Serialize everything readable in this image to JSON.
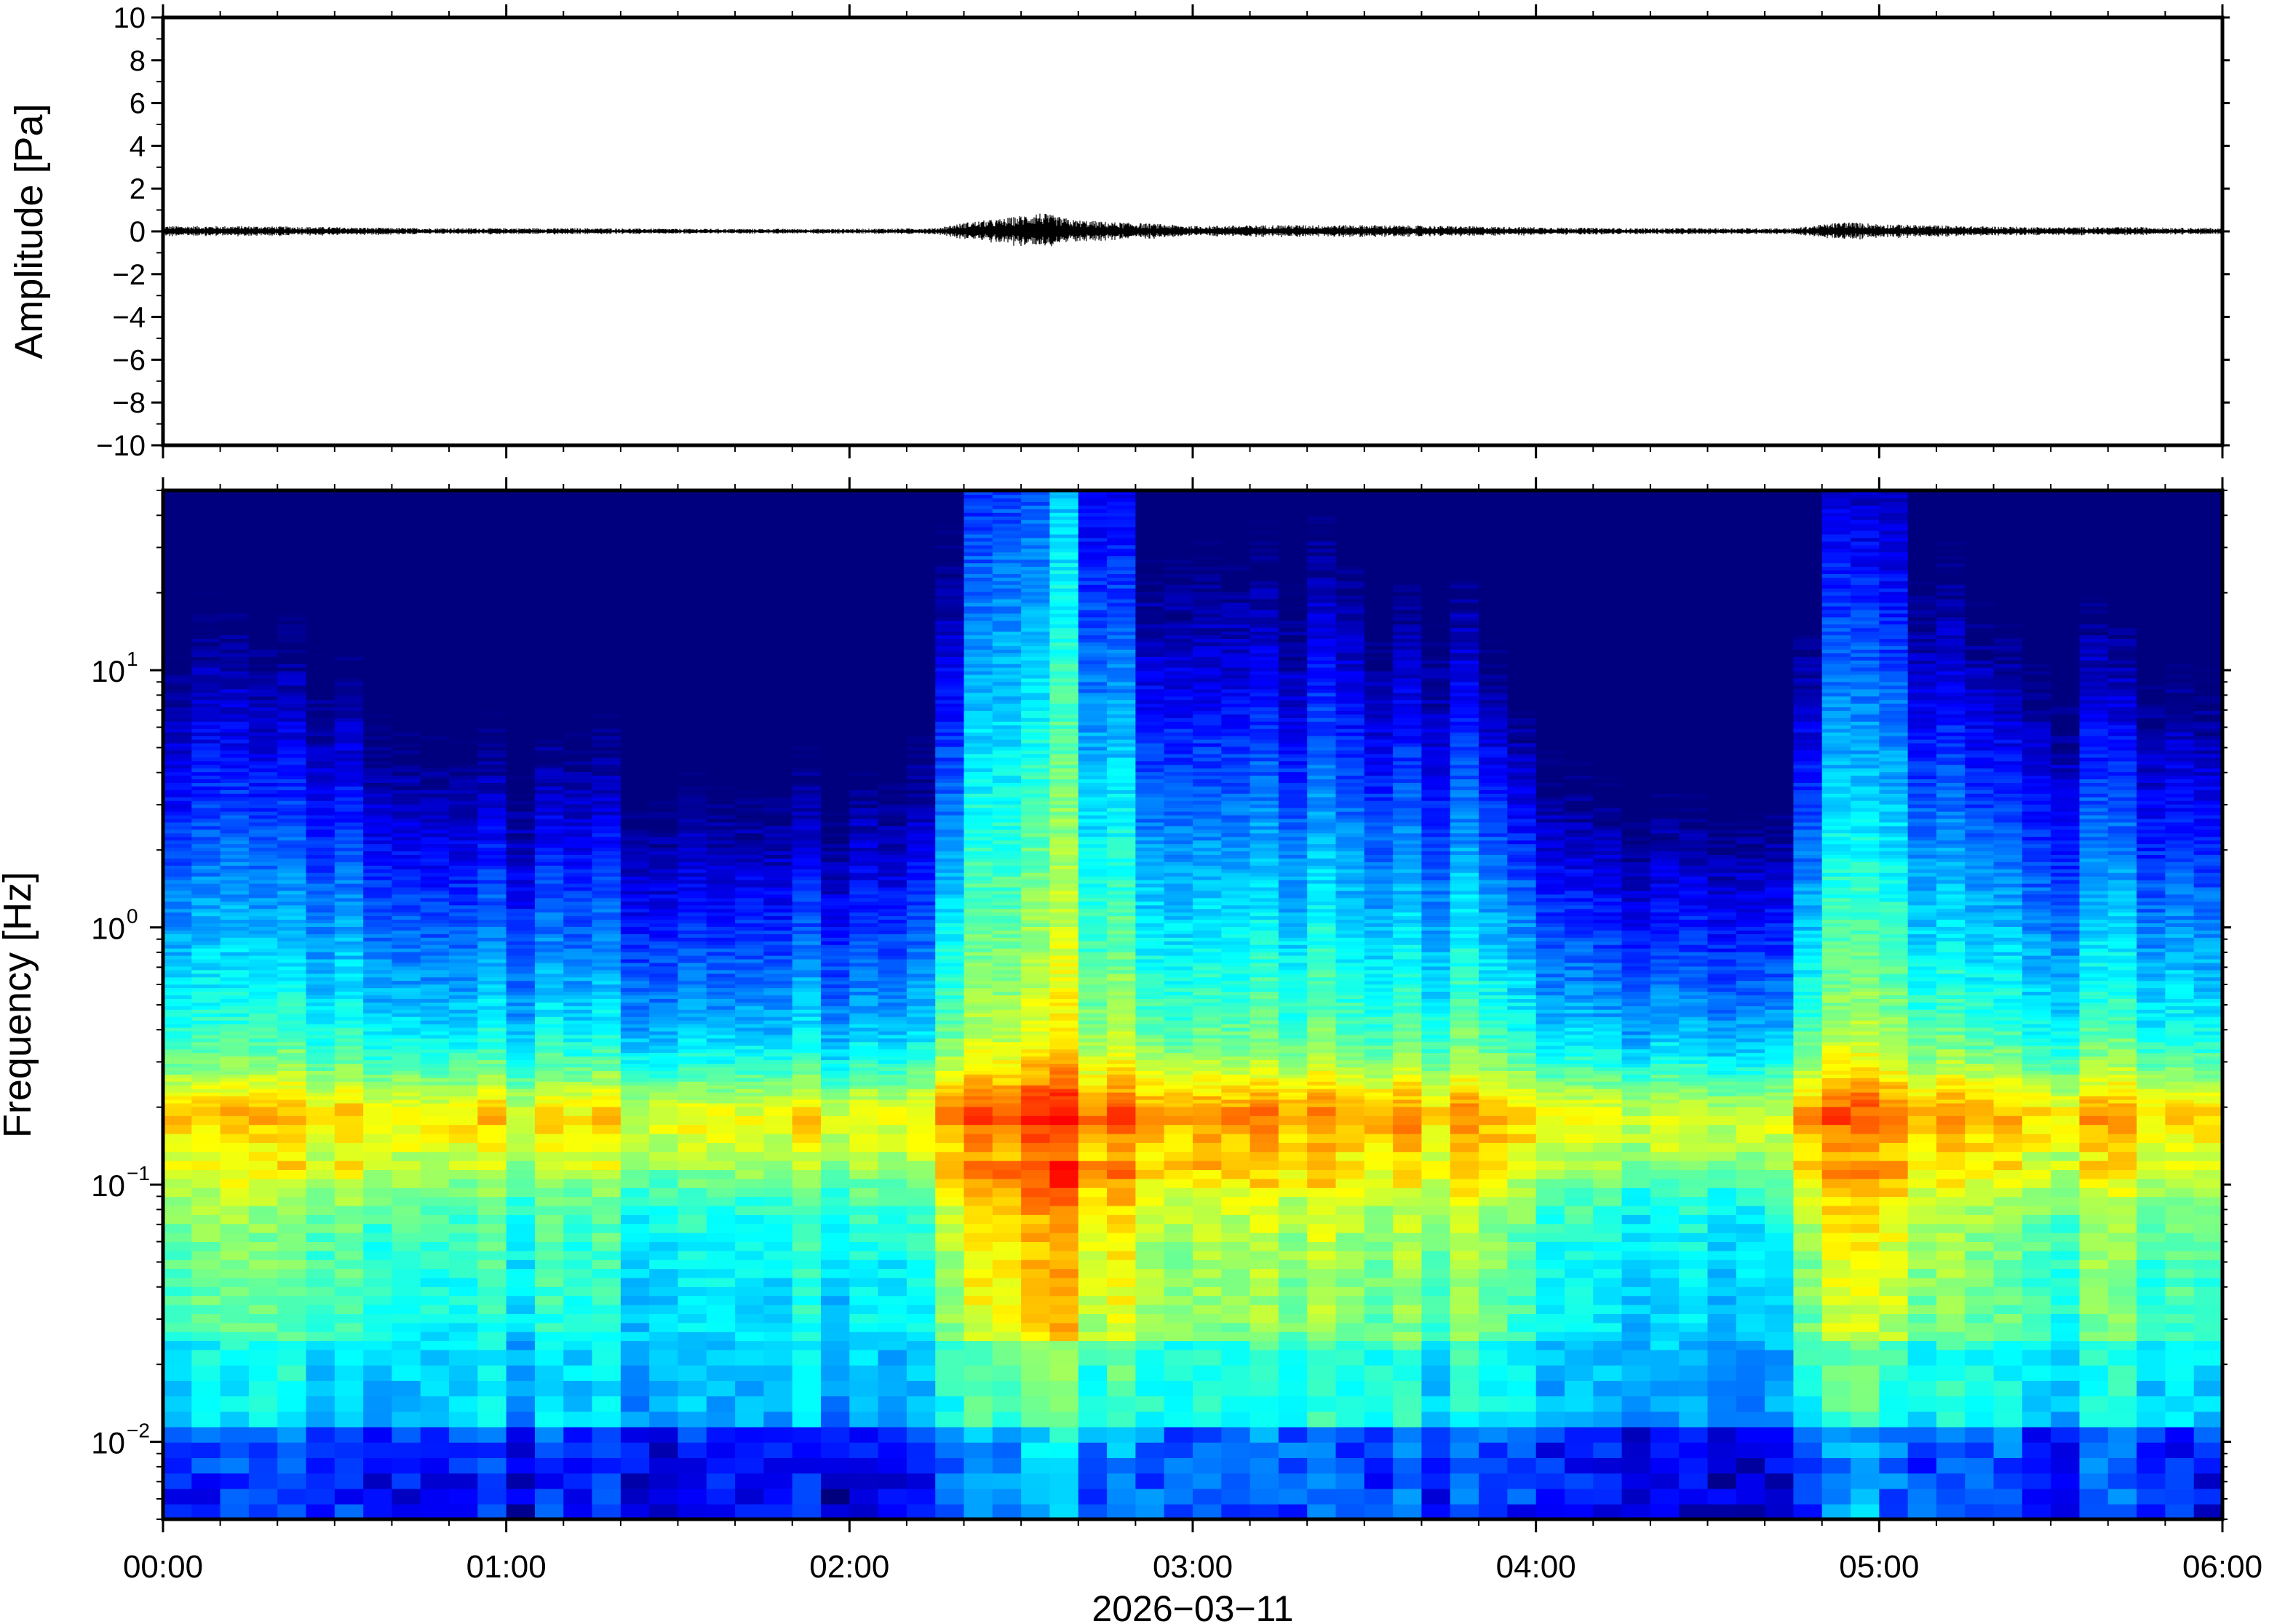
{
  "chart_data": [
    {
      "type": "line",
      "panel": "waveform",
      "ylabel": "Amplitude [Pa]",
      "ylim": [
        -10,
        10
      ],
      "yticks": [
        10,
        8,
        6,
        4,
        2,
        0,
        -2,
        -4,
        -6,
        -8,
        -10
      ],
      "ytick_labels": [
        "10",
        "8",
        "6",
        "4",
        "2",
        "0",
        "−2",
        "−4",
        "−6",
        "−8",
        "−10"
      ],
      "xlim": [
        "00:00",
        "06:00"
      ],
      "line_color": "#000000",
      "series": [
        {
          "time_hours": [
            0.0,
            0.25,
            0.5,
            0.75,
            1.0,
            1.25,
            1.5,
            1.75,
            2.0,
            2.25,
            2.35,
            2.45,
            2.55,
            2.65,
            2.75,
            2.9,
            3.0,
            3.25,
            3.5,
            3.75,
            4.0,
            4.25,
            4.5,
            4.75,
            4.9,
            5.0,
            5.25,
            5.5,
            5.75,
            6.0
          ],
          "envelope_pa": [
            0.25,
            0.25,
            0.2,
            0.15,
            0.15,
            0.15,
            0.12,
            0.12,
            0.12,
            0.15,
            0.45,
            0.6,
            0.9,
            0.55,
            0.45,
            0.35,
            0.25,
            0.3,
            0.3,
            0.25,
            0.2,
            0.15,
            0.15,
            0.15,
            0.45,
            0.35,
            0.25,
            0.2,
            0.2,
            0.15
          ]
        }
      ]
    },
    {
      "type": "heatmap",
      "panel": "spectrogram",
      "ylabel": "Frequency [Hz]",
      "xlabel": "2026−03−11",
      "y_scale": "log",
      "ylim_hz": [
        0.005,
        50
      ],
      "yticks_hz": [
        0.01,
        0.1,
        1,
        10
      ],
      "ytick_labels": [
        {
          "base": "10",
          "exp": "−2"
        },
        {
          "base": "10",
          "exp": "−1"
        },
        {
          "base": "10",
          "exp": "0"
        },
        {
          "base": "10",
          "exp": "1"
        }
      ],
      "x_ticks": [
        "00:00",
        "01:00",
        "02:00",
        "03:00",
        "04:00",
        "05:00",
        "06:00"
      ],
      "colormap": [
        "#00007f",
        "#0000ff",
        "#007fff",
        "#00ffff",
        "#7fff7f",
        "#ffff00",
        "#ff7f00",
        "#ff0000"
      ],
      "time_hours": [
        0.0,
        0.25,
        0.5,
        0.75,
        1.0,
        1.25,
        1.5,
        1.75,
        2.0,
        2.25,
        2.35,
        2.5,
        2.6,
        2.75,
        2.9,
        3.0,
        3.25,
        3.5,
        3.75,
        4.0,
        4.15,
        4.25,
        4.5,
        4.75,
        4.85,
        5.0,
        5.25,
        5.5,
        5.75,
        6.0
      ],
      "activity_index": [
        0.55,
        0.5,
        0.42,
        0.25,
        0.22,
        0.25,
        0.1,
        0.12,
        0.15,
        0.25,
        0.95,
        1.0,
        1.0,
        0.85,
        0.6,
        0.5,
        0.55,
        0.55,
        0.5,
        0.3,
        0.15,
        0.1,
        0.12,
        0.12,
        0.95,
        0.75,
        0.55,
        0.5,
        0.5,
        0.45
      ],
      "microbarom_peak_hz": 0.17,
      "background_peak_hz": [
        0.04,
        0.1
      ]
    }
  ]
}
